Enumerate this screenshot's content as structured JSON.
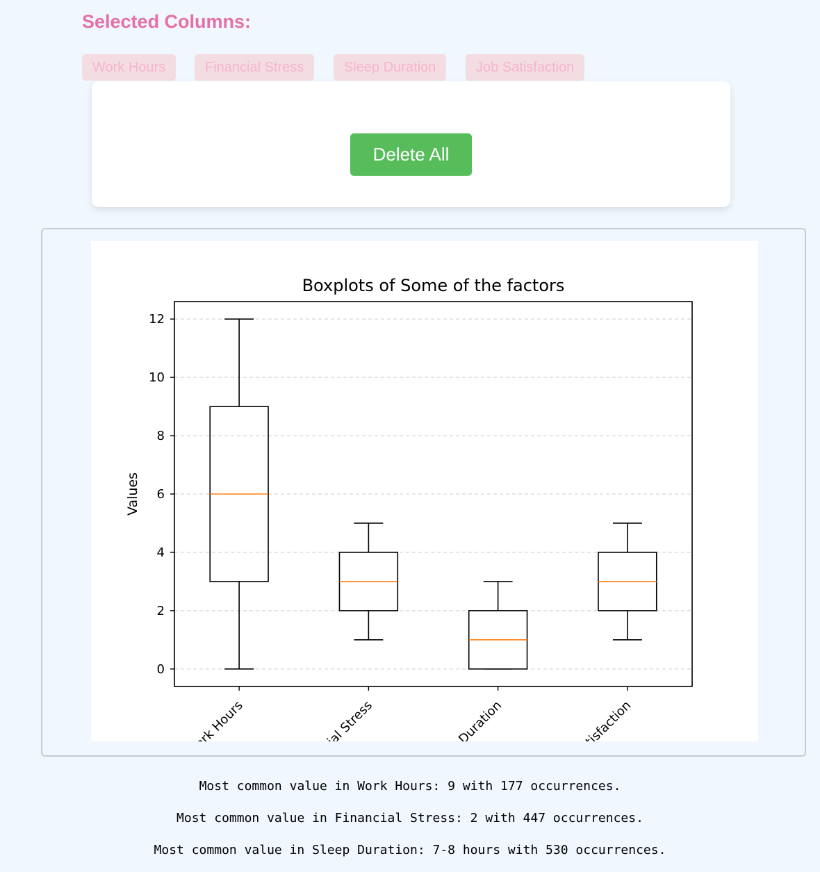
{
  "header": {
    "title": "Selected Columns:"
  },
  "chips": [
    "Work Hours",
    "Financial Stress",
    "Sleep Duration",
    "Job Satisfaction"
  ],
  "actions": {
    "delete_all": "Delete All"
  },
  "chart_data": {
    "type": "boxplot",
    "title": "Boxplots of Some of the factors",
    "xlabel": "",
    "ylabel": "Values",
    "ylim": [
      -0.6,
      12.6
    ],
    "yticks": [
      0,
      2,
      4,
      6,
      8,
      10,
      12
    ],
    "grid": "y-dashed",
    "categories": [
      "Work Hours",
      "Financial Stress",
      "Sleep Duration",
      "Job Satisfaction"
    ],
    "boxes": [
      {
        "whislo": 0,
        "q1": 3,
        "med": 6,
        "q3": 9,
        "whishi": 12
      },
      {
        "whislo": 1,
        "q1": 2,
        "med": 3,
        "q3": 4,
        "whishi": 5
      },
      {
        "whislo": 0,
        "q1": 0,
        "med": 1,
        "q3": 2,
        "whishi": 3
      },
      {
        "whislo": 1,
        "q1": 2,
        "med": 3,
        "q3": 4,
        "whishi": 5
      }
    ],
    "colors": {
      "box": "#000000",
      "median": "#ff7f0e",
      "grid": "#cccccc"
    }
  },
  "stats": [
    "Most common value in Work Hours: 9 with 177 occurrences.",
    "Most common value in Financial Stress: 2 with 447 occurrences.",
    "Most common value in Sleep Duration: 7-8 hours with 530 occurrences."
  ]
}
